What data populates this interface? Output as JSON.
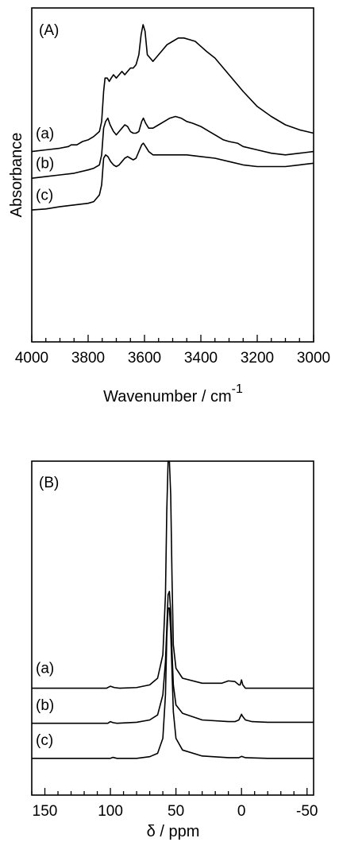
{
  "chart_data": [
    {
      "type": "line",
      "panel_label": "(A)",
      "xlabel": "Wavenumber / cm",
      "xlabel_sup": "-1",
      "ylabel": "Absorbance",
      "xlim": [
        4000,
        3000
      ],
      "ylim": [
        0,
        1
      ],
      "x_ticks": [
        4000,
        3800,
        3600,
        3400,
        3200,
        3000
      ],
      "x_tick_labels": [
        "4000",
        "3800",
        "3600",
        "3400",
        "3200",
        "3000"
      ],
      "x_minor_step": 50,
      "grid": false,
      "series": [
        {
          "label": "(a)",
          "label_x": 4000,
          "label_y": 0.61,
          "points": [
            [
              4000,
              0.57
            ],
            [
              3950,
              0.575
            ],
            [
              3900,
              0.58
            ],
            [
              3870,
              0.585
            ],
            [
              3860,
              0.59
            ],
            [
              3840,
              0.59
            ],
            [
              3820,
              0.6
            ],
            [
              3800,
              0.605
            ],
            [
              3780,
              0.615
            ],
            [
              3760,
              0.63
            ],
            [
              3752,
              0.66
            ],
            [
              3745,
              0.75
            ],
            [
              3740,
              0.79
            ],
            [
              3732,
              0.79
            ],
            [
              3725,
              0.78
            ],
            [
              3718,
              0.79
            ],
            [
              3710,
              0.8
            ],
            [
              3700,
              0.79
            ],
            [
              3690,
              0.8
            ],
            [
              3680,
              0.81
            ],
            [
              3670,
              0.8
            ],
            [
              3660,
              0.81
            ],
            [
              3650,
              0.82
            ],
            [
              3640,
              0.82
            ],
            [
              3630,
              0.83
            ],
            [
              3620,
              0.86
            ],
            [
              3612,
              0.92
            ],
            [
              3605,
              0.95
            ],
            [
              3598,
              0.93
            ],
            [
              3590,
              0.86
            ],
            [
              3580,
              0.85
            ],
            [
              3570,
              0.84
            ],
            [
              3560,
              0.85
            ],
            [
              3540,
              0.87
            ],
            [
              3520,
              0.89
            ],
            [
              3500,
              0.9
            ],
            [
              3480,
              0.91
            ],
            [
              3460,
              0.91
            ],
            [
              3440,
              0.905
            ],
            [
              3420,
              0.9
            ],
            [
              3400,
              0.885
            ],
            [
              3380,
              0.87
            ],
            [
              3350,
              0.85
            ],
            [
              3300,
              0.8
            ],
            [
              3250,
              0.75
            ],
            [
              3200,
              0.705
            ],
            [
              3150,
              0.675
            ],
            [
              3100,
              0.65
            ],
            [
              3050,
              0.635
            ],
            [
              3000,
              0.625
            ]
          ]
        },
        {
          "label": "(b)",
          "label_x": 4000,
          "label_y": 0.52,
          "points": [
            [
              4000,
              0.49
            ],
            [
              3950,
              0.495
            ],
            [
              3900,
              0.5
            ],
            [
              3850,
              0.505
            ],
            [
              3800,
              0.515
            ],
            [
              3780,
              0.52
            ],
            [
              3760,
              0.53
            ],
            [
              3752,
              0.56
            ],
            [
              3745,
              0.64
            ],
            [
              3738,
              0.66
            ],
            [
              3730,
              0.67
            ],
            [
              3722,
              0.65
            ],
            [
              3710,
              0.63
            ],
            [
              3700,
              0.62
            ],
            [
              3690,
              0.63
            ],
            [
              3680,
              0.64
            ],
            [
              3670,
              0.65
            ],
            [
              3660,
              0.645
            ],
            [
              3650,
              0.63
            ],
            [
              3640,
              0.625
            ],
            [
              3630,
              0.625
            ],
            [
              3620,
              0.63
            ],
            [
              3610,
              0.66
            ],
            [
              3604,
              0.67
            ],
            [
              3596,
              0.655
            ],
            [
              3585,
              0.64
            ],
            [
              3570,
              0.64
            ],
            [
              3550,
              0.65
            ],
            [
              3530,
              0.66
            ],
            [
              3510,
              0.67
            ],
            [
              3490,
              0.675
            ],
            [
              3470,
              0.67
            ],
            [
              3450,
              0.66
            ],
            [
              3430,
              0.655
            ],
            [
              3400,
              0.645
            ],
            [
              3370,
              0.63
            ],
            [
              3340,
              0.615
            ],
            [
              3320,
              0.605
            ],
            [
              3300,
              0.6
            ],
            [
              3270,
              0.595
            ],
            [
              3250,
              0.585
            ],
            [
              3200,
              0.575
            ],
            [
              3150,
              0.565
            ],
            [
              3100,
              0.56
            ],
            [
              3050,
              0.565
            ],
            [
              3000,
              0.57
            ]
          ]
        },
        {
          "label": "(c)",
          "label_x": 4000,
          "label_y": 0.425,
          "points": [
            [
              4000,
              0.395
            ],
            [
              3950,
              0.398
            ],
            [
              3900,
              0.405
            ],
            [
              3850,
              0.41
            ],
            [
              3800,
              0.415
            ],
            [
              3780,
              0.42
            ],
            [
              3770,
              0.43
            ],
            [
              3760,
              0.44
            ],
            [
              3752,
              0.47
            ],
            [
              3745,
              0.55
            ],
            [
              3738,
              0.56
            ],
            [
              3730,
              0.555
            ],
            [
              3720,
              0.54
            ],
            [
              3710,
              0.53
            ],
            [
              3700,
              0.525
            ],
            [
              3690,
              0.53
            ],
            [
              3680,
              0.54
            ],
            [
              3670,
              0.55
            ],
            [
              3660,
              0.555
            ],
            [
              3650,
              0.55
            ],
            [
              3640,
              0.545
            ],
            [
              3630,
              0.55
            ],
            [
              3620,
              0.57
            ],
            [
              3610,
              0.59
            ],
            [
              3604,
              0.595
            ],
            [
              3596,
              0.585
            ],
            [
              3585,
              0.57
            ],
            [
              3570,
              0.56
            ],
            [
              3550,
              0.56
            ],
            [
              3520,
              0.56
            ],
            [
              3500,
              0.56
            ],
            [
              3480,
              0.56
            ],
            [
              3450,
              0.56
            ],
            [
              3400,
              0.555
            ],
            [
              3350,
              0.55
            ],
            [
              3300,
              0.54
            ],
            [
              3250,
              0.53
            ],
            [
              3200,
              0.525
            ],
            [
              3150,
              0.525
            ],
            [
              3100,
              0.525
            ],
            [
              3050,
              0.53
            ],
            [
              3000,
              0.535
            ]
          ]
        }
      ]
    },
    {
      "type": "line",
      "panel_label": "(B)",
      "xlabel": "δ  / ppm",
      "ylabel": "",
      "xlim": [
        160,
        -55
      ],
      "ylim": [
        0,
        1
      ],
      "x_ticks": [
        150,
        100,
        50,
        0,
        -50
      ],
      "x_tick_labels": [
        "150",
        "100",
        "50",
        "0",
        "-50"
      ],
      "x_minor_step": 10,
      "grid": false,
      "series": [
        {
          "label": "(a)",
          "label_x": 160,
          "label_y": 0.365,
          "points": [
            [
              160,
              0.32
            ],
            [
              110,
              0.32
            ],
            [
              103,
              0.32
            ],
            [
              100,
              0.326
            ],
            [
              97,
              0.322
            ],
            [
              93,
              0.32
            ],
            [
              80,
              0.322
            ],
            [
              70,
              0.33
            ],
            [
              64,
              0.35
            ],
            [
              60,
              0.42
            ],
            [
              58,
              0.6
            ],
            [
              57,
              0.85
            ],
            [
              56,
              1.0
            ],
            [
              55,
              1.0
            ],
            [
              54,
              0.9
            ],
            [
              53,
              0.65
            ],
            [
              52,
              0.45
            ],
            [
              50,
              0.38
            ],
            [
              45,
              0.35
            ],
            [
              30,
              0.335
            ],
            [
              15,
              0.335
            ],
            [
              10,
              0.342
            ],
            [
              5,
              0.34
            ],
            [
              2,
              0.33
            ],
            [
              1,
              0.33
            ],
            [
              0,
              0.345
            ],
            [
              -1,
              0.33
            ],
            [
              -3,
              0.32
            ],
            [
              -20,
              0.32
            ],
            [
              -55,
              0.32
            ]
          ]
        },
        {
          "label": "(b)",
          "label_x": 160,
          "label_y": 0.255,
          "points": [
            [
              160,
              0.215
            ],
            [
              110,
              0.215
            ],
            [
              102,
              0.215
            ],
            [
              100,
              0.22
            ],
            [
              98,
              0.217
            ],
            [
              95,
              0.215
            ],
            [
              80,
              0.218
            ],
            [
              70,
              0.225
            ],
            [
              64,
              0.24
            ],
            [
              60,
              0.3
            ],
            [
              58,
              0.4
            ],
            [
              57,
              0.5
            ],
            [
              56,
              0.6
            ],
            [
              55,
              0.61
            ],
            [
              54,
              0.55
            ],
            [
              53,
              0.43
            ],
            [
              52,
              0.33
            ],
            [
              50,
              0.27
            ],
            [
              45,
              0.245
            ],
            [
              30,
              0.225
            ],
            [
              10,
              0.22
            ],
            [
              5,
              0.22
            ],
            [
              2,
              0.225
            ],
            [
              0,
              0.242
            ],
            [
              -1,
              0.235
            ],
            [
              -3,
              0.225
            ],
            [
              -8,
              0.22
            ],
            [
              -20,
              0.218
            ],
            [
              -55,
              0.218
            ]
          ]
        },
        {
          "label": "(c)",
          "label_x": 160,
          "label_y": 0.15,
          "points": [
            [
              160,
              0.11
            ],
            [
              110,
              0.11
            ],
            [
              100,
              0.11
            ],
            [
              98,
              0.113
            ],
            [
              95,
              0.11
            ],
            [
              80,
              0.11
            ],
            [
              70,
              0.115
            ],
            [
              64,
              0.125
            ],
            [
              60,
              0.17
            ],
            [
              58,
              0.3
            ],
            [
              57,
              0.47
            ],
            [
              56,
              0.56
            ],
            [
              55,
              0.56
            ],
            [
              54,
              0.49
            ],
            [
              53,
              0.37
            ],
            [
              52,
              0.25
            ],
            [
              50,
              0.17
            ],
            [
              45,
              0.135
            ],
            [
              30,
              0.117
            ],
            [
              10,
              0.112
            ],
            [
              2,
              0.112
            ],
            [
              0,
              0.116
            ],
            [
              -3,
              0.112
            ],
            [
              -20,
              0.11
            ],
            [
              -55,
              0.11
            ]
          ]
        }
      ]
    }
  ]
}
